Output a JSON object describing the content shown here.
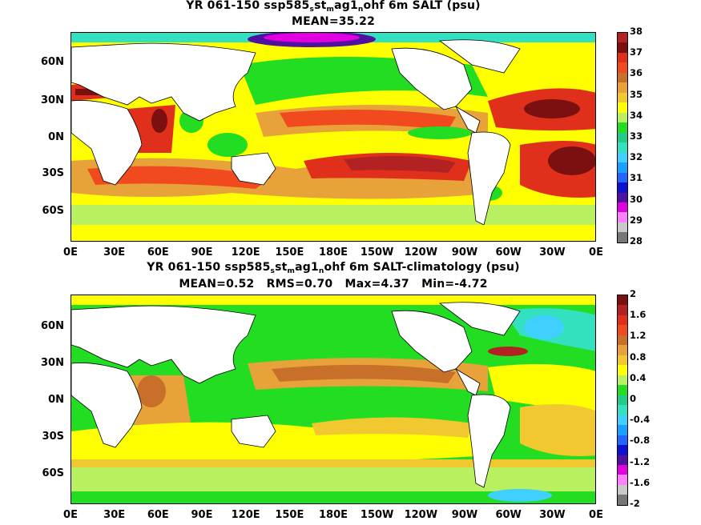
{
  "panels": [
    {
      "title_prefix": "YR 061-150 ssp585",
      "sub1": "s",
      "mid1": "st",
      "sub2": "m",
      "mid2": "ag1",
      "sub3": "n",
      "suffix": "ohf 6m SALT (psu)",
      "stats": "MEAN=35.22",
      "colorbar_labels": [
        "38",
        "37",
        "36",
        "35",
        "34",
        "33",
        "32",
        "31",
        "30",
        "29",
        "28"
      ],
      "colorbar_colors": [
        "#b22222",
        "#7a1010",
        "#e0301c",
        "#f04a1e",
        "#c8702a",
        "#e8a23a",
        "#f2c830",
        "#ffff00",
        "#b8f060",
        "#22dd22",
        "#22cc88",
        "#33e0c0",
        "#3fd0ff",
        "#1aa0ff",
        "#2266ff",
        "#1010d0",
        "#5010a0",
        "#e000e0",
        "#ff80ff",
        "#c8c8c8",
        "#777777"
      ]
    },
    {
      "title_prefix": "YR 061-150 ssp585",
      "sub1": "s",
      "mid1": "st",
      "sub2": "m",
      "mid2": "ag1",
      "sub3": "n",
      "suffix": "ohf 6m SALT-climatology (psu)",
      "stats": "MEAN=0.52   RMS=0.70   Max=4.37   Min=-4.72",
      "colorbar_labels": [
        "2",
        "1.6",
        "1.2",
        "0.8",
        "0.4",
        "0",
        "-0.4",
        "-0.8",
        "-1.2",
        "-1.6",
        "-2"
      ],
      "colorbar_colors": [
        "#7a1010",
        "#b22222",
        "#e0301c",
        "#f04a1e",
        "#c8702a",
        "#e8a23a",
        "#f2c830",
        "#ffff00",
        "#b8f060",
        "#22dd22",
        "#22cc88",
        "#33e0c0",
        "#3fd0ff",
        "#1aa0ff",
        "#2266ff",
        "#1010d0",
        "#5010a0",
        "#e000e0",
        "#ff80ff",
        "#c8c8c8",
        "#777777"
      ]
    }
  ],
  "x_ticks": [
    "0E",
    "30E",
    "60E",
    "90E",
    "120E",
    "150E",
    "180E",
    "150W",
    "120W",
    "90W",
    "60W",
    "30W",
    "0E"
  ],
  "y_ticks": [
    "60N",
    "30N",
    "0N",
    "30S",
    "60S"
  ]
}
